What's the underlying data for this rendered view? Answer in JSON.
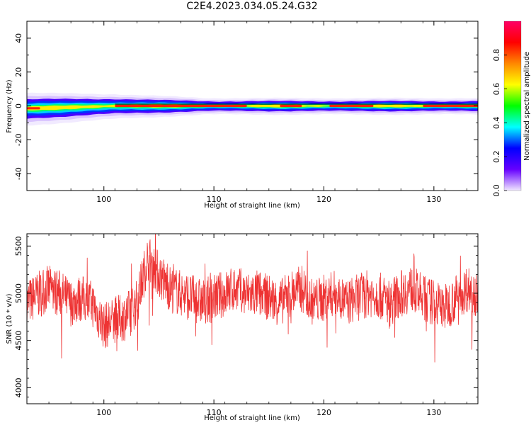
{
  "title": "C2E4.2023.034.05.24.G32",
  "chart_data": [
    {
      "type": "heatmap",
      "name": "spectrogram",
      "xlabel": "Height of straight line (km)",
      "ylabel": "Frequency (Hz)",
      "xlim": [
        93,
        134
      ],
      "ylim": [
        -50,
        50
      ],
      "xticks": [
        100,
        110,
        120,
        130
      ],
      "yticks": [
        40,
        20,
        0,
        -20,
        -40
      ],
      "ytick_labels": [
        "40",
        "20",
        "0",
        "-20",
        "-40"
      ],
      "signal_frequency_hz": 0,
      "start_frequency_hz": -1.5,
      "spread_hz_start": 4,
      "spread_hz_end": 2,
      "colorbar": {
        "label": "Normalized spectral amplitude",
        "range": [
          0,
          1
        ],
        "ticks": [
          0.0,
          0.2,
          0.4,
          0.6,
          0.8
        ],
        "tick_labels": [
          "0.0",
          "0.2",
          "0.4",
          "0.6",
          "0.8"
        ],
        "colors": [
          "#f0e6ff",
          "#6600ff",
          "#0000ff",
          "#00ffff",
          "#00ff00",
          "#ffff00",
          "#ff8800",
          "#ff0000",
          "#ff0066"
        ]
      }
    },
    {
      "type": "line",
      "name": "snr",
      "xlabel": "Height of straight line (km)",
      "ylabel": "SNR (10 * v/v)",
      "xlim": [
        93,
        134
      ],
      "ylim": [
        3830,
        5630
      ],
      "xticks": [
        100,
        110,
        120,
        130
      ],
      "yticks": [
        5500,
        5000,
        4500,
        4000
      ],
      "line_color": "#ee3333",
      "mean": 4950,
      "amplitude": 250,
      "x": [
        93,
        94,
        95,
        96,
        97,
        98,
        99,
        100,
        101,
        102,
        103,
        104,
        105,
        106,
        107,
        108,
        109,
        110,
        111,
        112,
        113,
        114,
        115,
        116,
        117,
        118,
        119,
        120,
        121,
        122,
        123,
        124,
        125,
        126,
        127,
        128,
        129,
        130,
        131,
        132,
        133,
        134
      ],
      "values": [
        4900,
        4980,
        5050,
        5000,
        4900,
        4950,
        4880,
        4650,
        4720,
        4750,
        4900,
        5380,
        5200,
        5050,
        5000,
        4950,
        4900,
        4950,
        5000,
        5050,
        4980,
        5000,
        4950,
        4900,
        5000,
        5050,
        4900,
        4950,
        5000,
        4900,
        4950,
        5000,
        4980,
        4900,
        5000,
        5050,
        4950,
        4900,
        4850,
        4950,
        5050,
        5000
      ]
    }
  ]
}
